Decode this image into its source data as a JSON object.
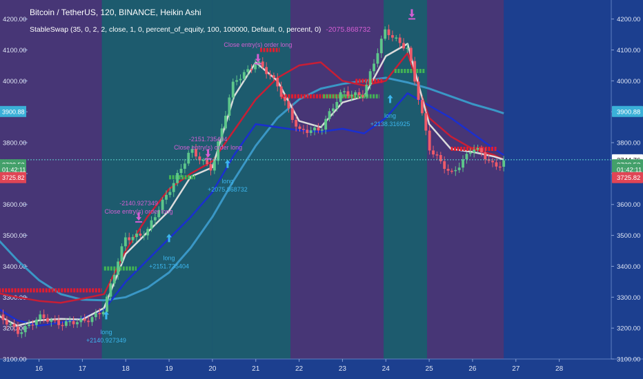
{
  "header": {
    "symbol_line": "Bitcoin / TetherUS, 120, BINANCE, Heikin Ashi",
    "strategy_line": "StableSwap (35, 0, 2, 2, close, 1, 0, percent_of_equity, 100, 100000, Default, 0, percent, 0)",
    "strategy_value": "-2075.868732"
  },
  "colors": {
    "background": "#1c3f8f",
    "zone_purple": "#473676",
    "zone_teal": "#1d5b6e",
    "candle_up": "#5dc68a",
    "candle_down": "#ee5a6a",
    "ma_fast": "#dcdcdc",
    "ma_red": "#c81e35",
    "ma_blue": "#1a2fcf",
    "ma_slow": "#3a97c6",
    "signal_label": "#d45fd3",
    "long_label": "#3cb6ee"
  },
  "chart_data": {
    "type": "candlestick",
    "ylim": [
      3100,
      4250
    ],
    "yticks": [
      "3100.00",
      "3200.00",
      "3300.00",
      "3400.00",
      "3500.00",
      "3600.00",
      "3700.00",
      "3800.00",
      "3900.00",
      "4000.00",
      "4100.00",
      "4200.00"
    ],
    "xticks": [
      {
        "label": "16",
        "day": 16
      },
      {
        "label": "17",
        "day": 17
      },
      {
        "label": "18",
        "day": 18
      },
      {
        "label": "19",
        "day": 19
      },
      {
        "label": "20",
        "day": 20
      },
      {
        "label": "21",
        "day": 21
      },
      {
        "label": "22",
        "day": 22
      },
      {
        "label": "23",
        "day": 23
      },
      {
        "label": "24",
        "day": 24
      },
      {
        "label": "25",
        "day": 25
      },
      {
        "label": "26",
        "day": 26
      },
      {
        "label": "27",
        "day": 27
      },
      {
        "label": "28",
        "day": 28
      }
    ],
    "price_badges": [
      {
        "label": "3900.88",
        "value": 3900.88,
        "color": "#3bb0d8"
      },
      {
        "label": "3744.76",
        "value": 3744.76,
        "color": "#ffffff"
      },
      {
        "label": "3728.52",
        "value": 3728.52,
        "color": "#43a06a"
      },
      {
        "label": "01:42:11",
        "value": 3713,
        "color": "#43a06a"
      },
      {
        "label": "3725.82",
        "value": 3687,
        "color": "#e04555"
      }
    ],
    "current_price": 3744.76,
    "zones": [
      {
        "start": 15.0,
        "end": 17.45,
        "kind": "purple"
      },
      {
        "start": 17.45,
        "end": 20.0,
        "kind": "teal"
      },
      {
        "start": 20.0,
        "end": 21.8,
        "kind": "teal"
      },
      {
        "start": 21.8,
        "end": 23.95,
        "kind": "purple"
      },
      {
        "start": 23.95,
        "end": 24.95,
        "kind": "teal"
      },
      {
        "start": 24.95,
        "end": 26.72,
        "kind": "purple"
      }
    ],
    "series": [
      {
        "kind": "ma_slow",
        "points": [
          [
            15.0,
            3495
          ],
          [
            15.5,
            3420
          ],
          [
            16.0,
            3355
          ],
          [
            16.5,
            3310
          ],
          [
            17.0,
            3292
          ],
          [
            17.5,
            3290
          ],
          [
            18.0,
            3300
          ],
          [
            18.5,
            3330
          ],
          [
            19.0,
            3380
          ],
          [
            19.5,
            3460
          ],
          [
            20.0,
            3560
          ],
          [
            20.5,
            3680
          ],
          [
            21.0,
            3790
          ],
          [
            21.5,
            3880
          ],
          [
            22.0,
            3940
          ],
          [
            22.5,
            3975
          ],
          [
            23.0,
            3990
          ],
          [
            23.5,
            4000
          ],
          [
            24.0,
            4010
          ],
          [
            24.5,
            3995
          ],
          [
            25.0,
            3975
          ],
          [
            25.5,
            3950
          ],
          [
            26.0,
            3925
          ],
          [
            26.5,
            3905
          ],
          [
            26.72,
            3895
          ]
        ]
      },
      {
        "kind": "ma_blue",
        "points": [
          [
            15.0,
            3268
          ],
          [
            15.5,
            3225
          ],
          [
            16.0,
            3208
          ],
          [
            16.5,
            3218
          ],
          [
            17.0,
            3232
          ],
          [
            17.5,
            3260
          ],
          [
            18.0,
            3350
          ],
          [
            18.5,
            3420
          ],
          [
            19.0,
            3490
          ],
          [
            19.5,
            3560
          ],
          [
            20.0,
            3640
          ],
          [
            20.5,
            3760
          ],
          [
            21.0,
            3860
          ],
          [
            21.5,
            3850
          ],
          [
            22.0,
            3840
          ],
          [
            22.5,
            3835
          ],
          [
            23.0,
            3845
          ],
          [
            23.5,
            3830
          ],
          [
            24.0,
            3880
          ],
          [
            24.5,
            3960
          ],
          [
            25.0,
            3920
          ],
          [
            25.5,
            3880
          ],
          [
            26.0,
            3830
          ],
          [
            26.5,
            3780
          ],
          [
            26.72,
            3760
          ]
        ]
      },
      {
        "kind": "ma_red",
        "points": [
          [
            15.0,
            3315
          ],
          [
            15.5,
            3300
          ],
          [
            16.0,
            3288
          ],
          [
            16.5,
            3282
          ],
          [
            17.0,
            3295
          ],
          [
            17.5,
            3310
          ],
          [
            18.0,
            3450
          ],
          [
            18.5,
            3560
          ],
          [
            19.0,
            3650
          ],
          [
            19.5,
            3700
          ],
          [
            20.0,
            3740
          ],
          [
            20.5,
            3840
          ],
          [
            21.0,
            3940
          ],
          [
            21.5,
            4010
          ],
          [
            22.0,
            4050
          ],
          [
            22.5,
            4060
          ],
          [
            23.0,
            4000
          ],
          [
            23.5,
            3985
          ],
          [
            24.0,
            4000
          ],
          [
            24.5,
            4090
          ],
          [
            25.0,
            3880
          ],
          [
            25.5,
            3820
          ],
          [
            26.0,
            3780
          ],
          [
            26.5,
            3760
          ],
          [
            26.72,
            3745
          ]
        ]
      },
      {
        "kind": "ma_fast",
        "points": [
          [
            15.0,
            3245
          ],
          [
            15.5,
            3208
          ],
          [
            16.0,
            3225
          ],
          [
            16.5,
            3230
          ],
          [
            17.0,
            3228
          ],
          [
            17.5,
            3265
          ],
          [
            18.0,
            3440
          ],
          [
            18.5,
            3510
          ],
          [
            19.0,
            3580
          ],
          [
            19.5,
            3690
          ],
          [
            20.0,
            3720
          ],
          [
            20.5,
            3950
          ],
          [
            21.0,
            4060
          ],
          [
            21.5,
            4000
          ],
          [
            22.0,
            3870
          ],
          [
            22.5,
            3850
          ],
          [
            23.0,
            3930
          ],
          [
            23.5,
            3950
          ],
          [
            24.0,
            4080
          ],
          [
            24.5,
            4120
          ],
          [
            25.0,
            3860
          ],
          [
            25.5,
            3780
          ],
          [
            26.0,
            3770
          ],
          [
            26.5,
            3755
          ],
          [
            26.72,
            3745
          ]
        ]
      }
    ],
    "candles": {
      "anchors": [
        [
          15.0,
          3240
        ],
        [
          15.5,
          3190
        ],
        [
          16.0,
          3230
        ],
        [
          16.5,
          3220
        ],
        [
          17.0,
          3215
        ],
        [
          17.5,
          3265
        ],
        [
          18.0,
          3495
        ],
        [
          18.5,
          3510
        ],
        [
          19.0,
          3650
        ],
        [
          19.5,
          3770
        ],
        [
          20.0,
          3720
        ],
        [
          20.5,
          4000
        ],
        [
          21.0,
          4060
        ],
        [
          21.5,
          3990
        ],
        [
          22.0,
          3830
        ],
        [
          22.5,
          3850
        ],
        [
          23.0,
          3960
        ],
        [
          23.5,
          3960
        ],
        [
          24.0,
          4170
        ],
        [
          24.5,
          4100
        ],
        [
          25.0,
          3790
        ],
        [
          25.5,
          3690
        ],
        [
          26.0,
          3790
        ],
        [
          26.5,
          3720
        ],
        [
          26.72,
          3745
        ]
      ],
      "count": 138,
      "start_day": 15.0,
      "end_day": 26.72
    },
    "zone_bands": [
      {
        "from": 15.0,
        "to": 17.45,
        "value": 3322,
        "color": "#e11d2f"
      },
      {
        "from": 17.5,
        "to": 18.25,
        "value": 3393,
        "color": "#43b455"
      },
      {
        "from": 19.0,
        "to": 19.6,
        "value": 3688,
        "color": "#43b455"
      },
      {
        "from": 21.1,
        "to": 21.55,
        "value": 4100,
        "color": "#e11d2f"
      },
      {
        "from": 21.6,
        "to": 23.3,
        "value": 3950,
        "color": "#e11d2f"
      },
      {
        "from": 22.55,
        "to": 23.85,
        "value": 3950,
        "color": "#43b455"
      },
      {
        "from": 23.3,
        "to": 23.95,
        "value": 4000,
        "color": "#e11d2f"
      },
      {
        "from": 24.2,
        "to": 24.9,
        "value": 4032,
        "color": "#43b455"
      },
      {
        "from": 25.5,
        "to": 26.55,
        "value": 3780,
        "color": "#e11d2f"
      }
    ],
    "annotations": [
      {
        "day": 17.55,
        "value": 3180,
        "lines": [
          "long",
          "+2140.927349"
        ],
        "color": "long",
        "arrow": "up",
        "arrow_value": 3255
      },
      {
        "day": 18.3,
        "value": 3597,
        "lines": [
          "-2140.927349",
          "Close entry(s) order long"
        ],
        "color": "signal",
        "arrow": "down",
        "arrow_value": 3548
      },
      {
        "day": 19.0,
        "value": 3420,
        "lines": [
          "long",
          "+2151.735404"
        ],
        "color": "long",
        "arrow": "up",
        "arrow_value": 3505
      },
      {
        "day": 19.9,
        "value": 3805,
        "lines": [
          "-2151.735404",
          "Close entry(s) order long"
        ],
        "color": "signal",
        "arrow": "down",
        "arrow_value": 3752
      },
      {
        "day": 20.35,
        "value": 3668,
        "lines": [
          "long",
          "+2075.868732"
        ],
        "color": "long",
        "arrow": "up",
        "arrow_value": 3745
      },
      {
        "day": 21.05,
        "value": 4110,
        "lines": [
          "Close entry(s) order long"
        ],
        "color": "signal",
        "arrow": "down",
        "arrow_value": 4060
      },
      {
        "day": 24.1,
        "value": 3880,
        "lines": [
          "long",
          "+2138.316925"
        ],
        "color": "long",
        "arrow": "up",
        "arrow_value": 3955
      },
      {
        "day": 24.6,
        "value": 4220,
        "lines": [],
        "color": "signal",
        "arrow": "down",
        "arrow_value": 4205
      }
    ]
  }
}
